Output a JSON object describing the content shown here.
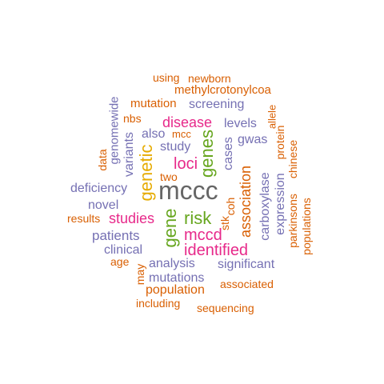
{
  "palette": {
    "orange": "#d95f02",
    "purple": "#7570b3",
    "pink": "#e7298a",
    "green": "#66a61e",
    "gold": "#e6ab02",
    "gray": "#666666"
  },
  "words": {
    "using": "using",
    "newborn": "newborn",
    "methylcrotonylcoa": "methylcrotonylcoa",
    "mutation": "mutation",
    "genomewide": "genomewide",
    "screening": "screening",
    "allele": "allele",
    "nbs": "nbs",
    "disease": "disease",
    "levels": "levels",
    "mcc": "mcc",
    "data": "data",
    "variants": "variants",
    "also": "also",
    "study": "study",
    "genetic": "genetic",
    "genes": "genes",
    "gwas": "gwas",
    "protein": "protein",
    "chinese": "chinese",
    "cases": "cases",
    "loci": "loci",
    "two": "two",
    "association": "association",
    "mccc": "mccc",
    "deficiency": "deficiency",
    "carboxylase": "carboxylase",
    "expression": "expression",
    "coh": "coh",
    "novel": "novel",
    "risk": "risk",
    "parkinsons": "parkinsons",
    "populations": "populations",
    "stk": "stk",
    "results": "results",
    "studies": "studies",
    "gene": "gene",
    "mccd": "mccd",
    "patients": "patients",
    "identified": "identified",
    "clinical": "clinical",
    "age": "age",
    "significant": "significant",
    "analysis": "analysis",
    "may": "may",
    "mutations": "mutations",
    "associated": "associated",
    "population": "population",
    "including": "including",
    "sequencing": "sequencing"
  }
}
